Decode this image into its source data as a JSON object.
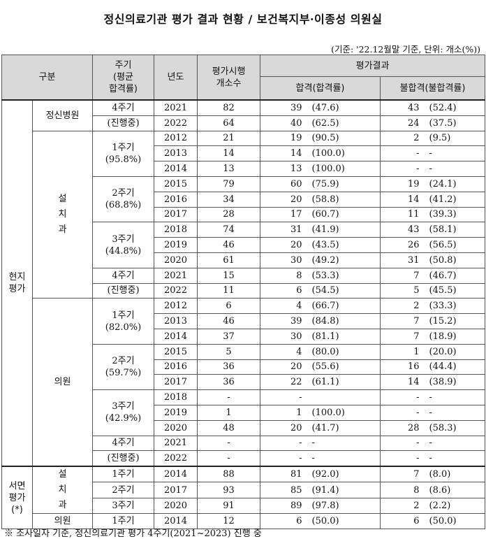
{
  "title": "정신의료기관 평가 결과 현황 / 보건복지부·이종성 의원실",
  "unit_note": "(기준: '22.12월말 기준, 단위: 개소(%))",
  "headers": {
    "category": "구분",
    "cycle_l1": "주기",
    "cycle_l2": "(평균",
    "cycle_l3": "합격률)",
    "year": "년도",
    "count_l1": "평가시행",
    "count_l2": "개소수",
    "result": "평가결과",
    "pass": "합격(합격률)",
    "fail": "불합격(불합격률)"
  },
  "labels": {
    "onsite_1": "현지",
    "onsite_2": "평가",
    "written_1": "서면",
    "written_2": "평가",
    "written_3": "(*)",
    "psych_hospital": "정신병원",
    "installed_1": "설",
    "installed_2": "치",
    "installed_3": "과",
    "clinic": "의원"
  },
  "cycles": {
    "c4a_1": "4주기",
    "c4a_2": "(진행중)",
    "c1a_1": "1주기",
    "c1a_2": "(95.8%)",
    "c2a_1": "2주기",
    "c2a_2": "(68.8%)",
    "c3a_1": "3주기",
    "c3a_2": "(44.8%)",
    "c4b_1": "4주기",
    "c4b_2": "(진행중)",
    "c1b_1": "1주기",
    "c1b_2": "(82.0%)",
    "c2b_1": "2주기",
    "c2b_2": "(59.7%)",
    "c3b_1": "3주기",
    "c3b_2": "(42.9%)",
    "c4c_1": "4주기",
    "c4c_2": "(진행중)",
    "w1": "1주기",
    "w2": "2주기",
    "w3": "3주기",
    "w4": "1주기"
  },
  "rows": [
    {
      "year": "2021",
      "count": "82",
      "pass": "39",
      "pass_rate": "(47.6)",
      "fail": "43",
      "fail_rate": "(52.4)"
    },
    {
      "year": "2022",
      "count": "64",
      "pass": "40",
      "pass_rate": "(62.5)",
      "fail": "24",
      "fail_rate": "(37.5)"
    },
    {
      "year": "2012",
      "count": "21",
      "pass": "19",
      "pass_rate": "(90.5)",
      "fail": "2",
      "fail_rate": "(9.5)"
    },
    {
      "year": "2013",
      "count": "14",
      "pass": "14",
      "pass_rate": "(100.0)",
      "fail": "-",
      "fail_rate": "-"
    },
    {
      "year": "2014",
      "count": "13",
      "pass": "13",
      "pass_rate": "(100.0)",
      "fail": "-",
      "fail_rate": "-"
    },
    {
      "year": "2015",
      "count": "79",
      "pass": "60",
      "pass_rate": "(75.9)",
      "fail": "19",
      "fail_rate": "(24.1)"
    },
    {
      "year": "2016",
      "count": "34",
      "pass": "20",
      "pass_rate": "(58.8)",
      "fail": "14",
      "fail_rate": "(41.2)"
    },
    {
      "year": "2017",
      "count": "28",
      "pass": "17",
      "pass_rate": "(60.7)",
      "fail": "11",
      "fail_rate": "(39.3)"
    },
    {
      "year": "2018",
      "count": "74",
      "pass": "31",
      "pass_rate": "(41.9)",
      "fail": "43",
      "fail_rate": "(58.1)"
    },
    {
      "year": "2019",
      "count": "46",
      "pass": "20",
      "pass_rate": "(43.5)",
      "fail": "26",
      "fail_rate": "(56.5)"
    },
    {
      "year": "2020",
      "count": "61",
      "pass": "30",
      "pass_rate": "(49.2)",
      "fail": "31",
      "fail_rate": "(50.8)"
    },
    {
      "year": "2021",
      "count": "15",
      "pass": "8",
      "pass_rate": "(53.3)",
      "fail": "7",
      "fail_rate": "(46.7)"
    },
    {
      "year": "2022",
      "count": "11",
      "pass": "6",
      "pass_rate": "(54.5)",
      "fail": "5",
      "fail_rate": "(45.5)"
    },
    {
      "year": "2012",
      "count": "6",
      "pass": "4",
      "pass_rate": "(66.7)",
      "fail": "2",
      "fail_rate": "(33.3)"
    },
    {
      "year": "2013",
      "count": "46",
      "pass": "39",
      "pass_rate": "(84.8)",
      "fail": "7",
      "fail_rate": "(15.2)"
    },
    {
      "year": "2014",
      "count": "37",
      "pass": "30",
      "pass_rate": "(81.1)",
      "fail": "7",
      "fail_rate": "(18.9)"
    },
    {
      "year": "2015",
      "count": "5",
      "pass": "4",
      "pass_rate": "(80.0)",
      "fail": "1",
      "fail_rate": "(20.0)"
    },
    {
      "year": "2016",
      "count": "36",
      "pass": "20",
      "pass_rate": "(55.6)",
      "fail": "16",
      "fail_rate": "(44.4)"
    },
    {
      "year": "2017",
      "count": "36",
      "pass": "22",
      "pass_rate": "(61.1)",
      "fail": "14",
      "fail_rate": "(38.9)"
    },
    {
      "year": "2018",
      "count": "-",
      "pass": "-",
      "pass_rate": "",
      "fail": "-",
      "fail_rate": "-"
    },
    {
      "year": "2019",
      "count": "1",
      "pass": "1",
      "pass_rate": "(100.0)",
      "fail": "-",
      "fail_rate": "-"
    },
    {
      "year": "2020",
      "count": "48",
      "pass": "20",
      "pass_rate": "(41.7)",
      "fail": "28",
      "fail_rate": "(58.3)"
    },
    {
      "year": "2021",
      "count": "-",
      "pass": "-",
      "pass_rate": "-",
      "fail": "-",
      "fail_rate": "-"
    },
    {
      "year": "2022",
      "count": "-",
      "pass": "-",
      "pass_rate": "-",
      "fail": "-",
      "fail_rate": "-"
    },
    {
      "year": "2014",
      "count": "88",
      "pass": "81",
      "pass_rate": "(92.0)",
      "fail": "7",
      "fail_rate": "(8.0)"
    },
    {
      "year": "2017",
      "count": "93",
      "pass": "85",
      "pass_rate": "(91.4)",
      "fail": "8",
      "fail_rate": "(8.6)"
    },
    {
      "year": "2020",
      "count": "91",
      "pass": "89",
      "pass_rate": "(97.8)",
      "fail": "2",
      "fail_rate": "(2.2)"
    },
    {
      "year": "2014",
      "count": "12",
      "pass": "6",
      "pass_rate": "(50.0)",
      "fail": "6",
      "fail_rate": "(50.0)"
    }
  ],
  "footnote": "※ 조사일자 기준, 정신의료기관 평가 4주기(2021~2023) 진행 중"
}
